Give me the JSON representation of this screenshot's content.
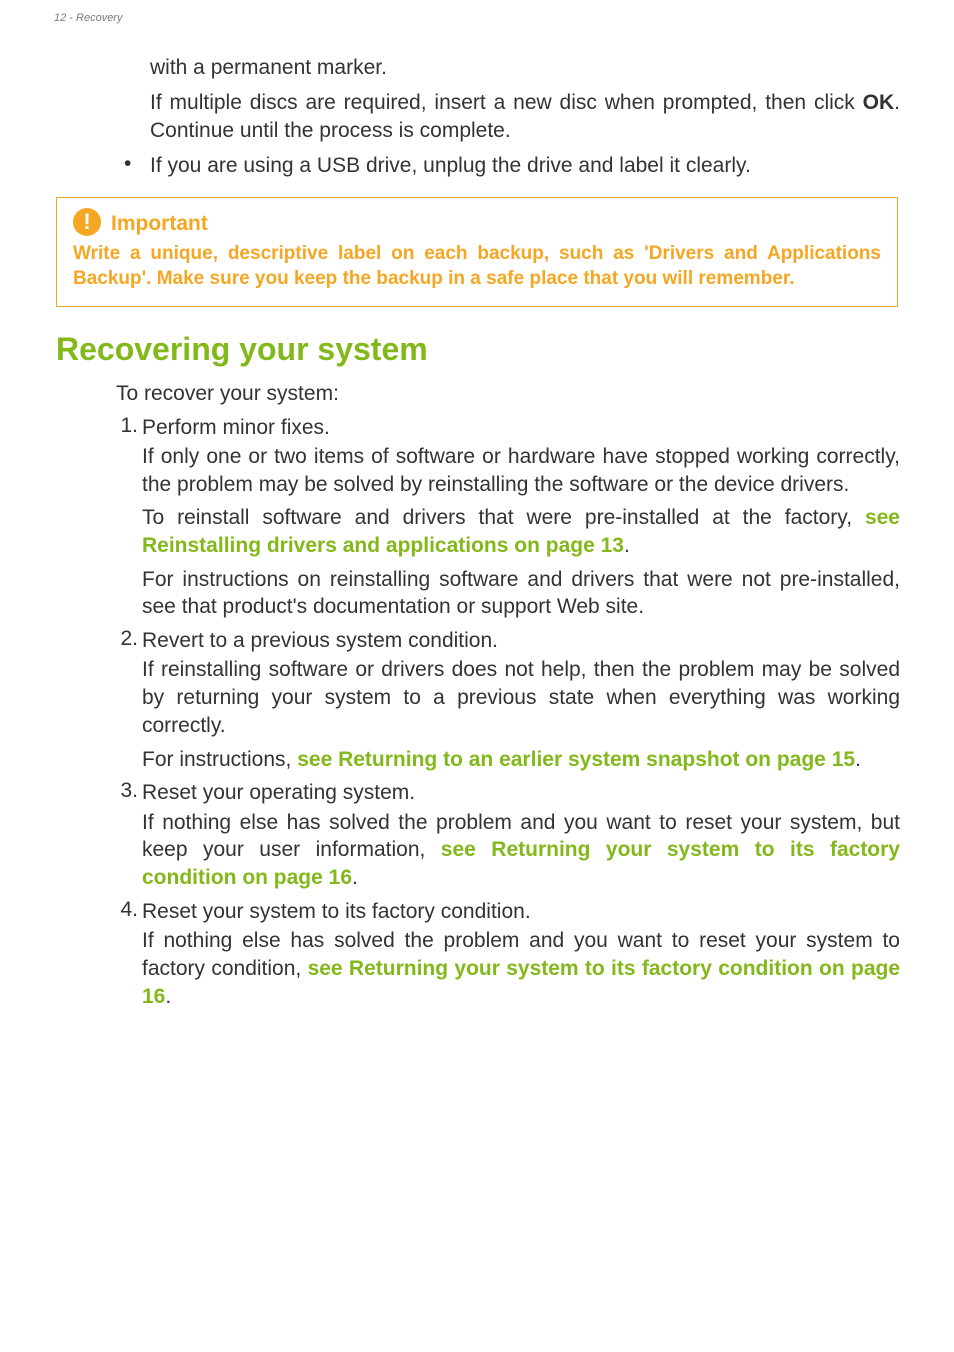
{
  "header": "12 - Recovery",
  "top": {
    "p1": "with a permanent marker.",
    "p2a": "If multiple discs are required, insert a new disc when prompted, then click ",
    "p2b": "OK",
    "p2c": ". Continue until the process is complete.",
    "bullet": "If you are using a USB drive, unplug the drive and label it clearly."
  },
  "callout": {
    "title": "Important",
    "body": "Write a unique, descriptive label on each backup, such as 'Drivers and Applications Backup'. Make sure you keep the backup in a safe place that you will remember."
  },
  "section": {
    "title": "Recovering your system",
    "intro": "To recover your system:",
    "items": [
      {
        "num": "1.",
        "head": "Perform minor fixes.",
        "body1": "If only one or two items of software or hardware have stopped working correctly, the problem may be solved by reinstalling the software or the device drivers.",
        "body2a": "To reinstall software and drivers that were pre-installed at the factory, ",
        "link2": "see Reinstalling drivers and applications on page 13",
        "body2b": ".",
        "body3": "For instructions on reinstalling software and drivers that were not pre-installed, see that product's documentation or support Web site."
      },
      {
        "num": "2.",
        "head": "Revert to a previous system condition.",
        "body1": "If reinstalling software or drivers does not help, then the problem may be solved by returning your system to a previous state when everything was working correctly.",
        "body2a": "For instructions, ",
        "link2": "see Returning to an earlier system snapshot on page 15",
        "body2b": "."
      },
      {
        "num": "3.",
        "head": "Reset your operating system.",
        "body1a": "If nothing else has solved the problem and you want to reset your system, but keep your user information, ",
        "link1": "see Returning your system to its factory condition on page 16",
        "body1b": "."
      },
      {
        "num": "4.",
        "head": "Reset your system to its factory condition.",
        "body1a": "If nothing else has solved the problem and you want to reset your system to factory condition, ",
        "link1": "see Returning your system to its factory condition on page 16",
        "body1b": "."
      }
    ]
  }
}
